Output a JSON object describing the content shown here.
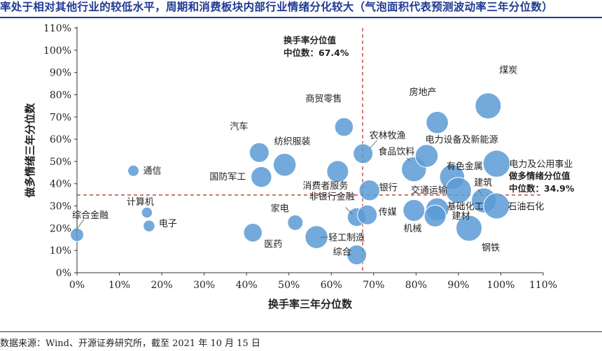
{
  "title": "率处于相对其他行业的较低水平，周期和消费板块内部行业情绪分化较大（气泡面积代表预测波动率三年分位数）",
  "source": "数据来源：Wind、开源证券研究所，截至 2021 年 10 月 15 日",
  "colors": {
    "bubble": "#5b9bd5",
    "bubble_stroke": "#ffffff",
    "refline": "#c0392b",
    "title": "#1f3a93",
    "axis": "#333333"
  },
  "chart_data": {
    "type": "scatter",
    "xlabel": "换手率三年分位数",
    "ylabel": "做多情绪三年分位数",
    "xlim": [
      0,
      110
    ],
    "ylim": [
      0,
      110
    ],
    "xticks": [
      "0%",
      "10%",
      "20%",
      "30%",
      "40%",
      "50%",
      "60%",
      "70%",
      "80%",
      "90%",
      "100%",
      "110%"
    ],
    "yticks": [
      "0%",
      "10%",
      "20%",
      "30%",
      "40%",
      "50%",
      "60%",
      "70%",
      "80%",
      "90%",
      "100%",
      "110%"
    ],
    "x_reference": {
      "value": 67.4,
      "label1": "换手率分位值",
      "label2": "中位数：67.4%"
    },
    "y_reference": {
      "value": 34.9,
      "label1": "做多情绪分位值",
      "label2": "中位数：34.9%"
    },
    "points": [
      {
        "name": "煤炭",
        "x": 97,
        "y": 75,
        "size": 0.9
      },
      {
        "name": "房地产",
        "x": 85,
        "y": 67.5,
        "size": 0.72
      },
      {
        "name": "商贸零售",
        "x": 63,
        "y": 65.5,
        "size": 0.55
      },
      {
        "name": "汽车",
        "x": 43,
        "y": 54,
        "size": 0.6
      },
      {
        "name": "纺织服装",
        "x": 49,
        "y": 48.5,
        "size": 0.75
      },
      {
        "name": "农林牧渔",
        "x": 67.5,
        "y": 53.5,
        "size": 0.6
      },
      {
        "name": "食品饮料",
        "x": 79.5,
        "y": 46.5,
        "size": 0.85
      },
      {
        "name": "电力设备及新能源",
        "x": 82.5,
        "y": 52.5,
        "size": 0.75
      },
      {
        "name": "电力及公用事业",
        "x": 99,
        "y": 49,
        "size": 0.95
      },
      {
        "name": "有色金属",
        "x": 88.5,
        "y": 43,
        "size": 0.85
      },
      {
        "name": "国防军工",
        "x": 43.5,
        "y": 43,
        "size": 0.65
      },
      {
        "name": "消费者服务",
        "x": 61.5,
        "y": 45.5,
        "size": 0.7
      },
      {
        "name": "通信",
        "x": 13.3,
        "y": 45.8,
        "size": 0.2
      },
      {
        "name": "银行",
        "x": 69,
        "y": 37,
        "size": 0.65
      },
      {
        "name": "交通运输",
        "x": 90,
        "y": 37,
        "size": 0.9
      },
      {
        "name": "建筑",
        "x": 96,
        "y": 32.5,
        "size": 0.85
      },
      {
        "name": "石油石化",
        "x": 99,
        "y": 30,
        "size": 0.9
      },
      {
        "name": "计算机",
        "x": 16.5,
        "y": 27,
        "size": 0.18
      },
      {
        "name": "基础化工",
        "x": 85,
        "y": 28.5,
        "size": 0.75
      },
      {
        "name": "机械",
        "x": 79.5,
        "y": 28,
        "size": 0.7
      },
      {
        "name": "建材",
        "x": 84.5,
        "y": 25.5,
        "size": 0.7
      },
      {
        "name": "家电",
        "x": 51.5,
        "y": 22.5,
        "size": 0.4
      },
      {
        "name": "非银行金融",
        "x": 66,
        "y": 25,
        "size": 0.55
      },
      {
        "name": "传媒",
        "x": 68.5,
        "y": 26,
        "size": 0.6
      },
      {
        "name": "电子",
        "x": 17,
        "y": 21,
        "size": 0.22
      },
      {
        "name": "综合金融",
        "x": 0,
        "y": 17,
        "size": 0.3
      },
      {
        "name": "医药",
        "x": 41.5,
        "y": 18,
        "size": 0.55
      },
      {
        "name": "钢铁",
        "x": 92.5,
        "y": 20,
        "size": 0.9
      },
      {
        "name": "轻工制造",
        "x": 56.5,
        "y": 16,
        "size": 0.75
      },
      {
        "name": "综合",
        "x": 66,
        "y": 8,
        "size": 0.6
      }
    ]
  }
}
